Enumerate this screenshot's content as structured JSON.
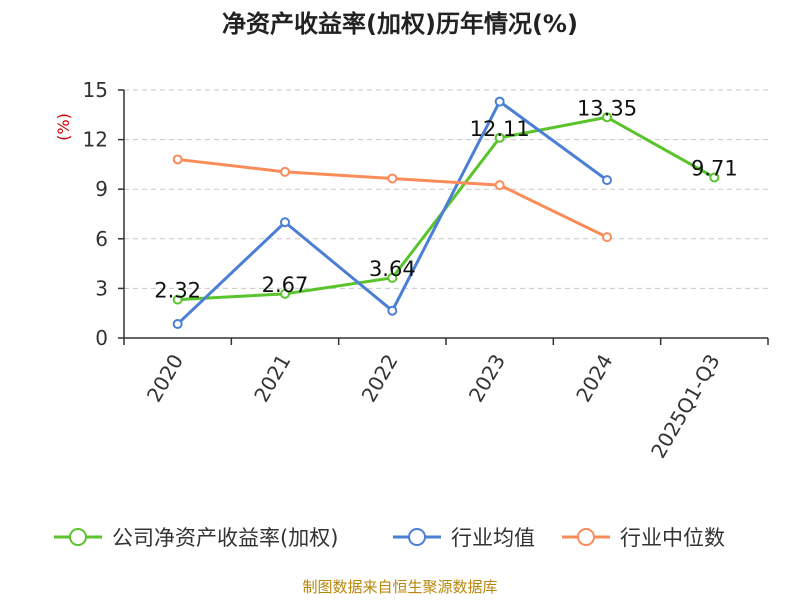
{
  "chart_data": {
    "type": "line",
    "title": "净资产收益率(加权)历年情况(%)",
    "ylabel": "(%)",
    "xlabel": "",
    "categories": [
      "2020",
      "2021",
      "2022",
      "2023",
      "2024",
      "2025Q1-Q3"
    ],
    "ylim": [
      0,
      15
    ],
    "yticks": [
      0,
      3,
      6,
      9,
      12,
      15
    ],
    "grid": "horizontal dashed",
    "legend_position": "bottom",
    "series": [
      {
        "name": "公司净资产收益率(加权)",
        "color": "#5ac42c",
        "values": [
          2.32,
          2.67,
          3.64,
          12.11,
          13.35,
          9.71
        ],
        "labels": [
          "2.32",
          "2.67",
          "3.64",
          "12.11",
          "13.35",
          "9.71"
        ]
      },
      {
        "name": "行业均值",
        "color": "#4b7fd6",
        "values": [
          0.85,
          7.0,
          1.65,
          14.3,
          9.55,
          null
        ]
      },
      {
        "name": "行业中位数",
        "color": "#fa8c5a",
        "values": [
          10.8,
          10.05,
          9.65,
          9.25,
          6.1,
          null
        ]
      }
    ]
  },
  "footer": {
    "source": "制图数据来自恒生聚源数据库"
  }
}
